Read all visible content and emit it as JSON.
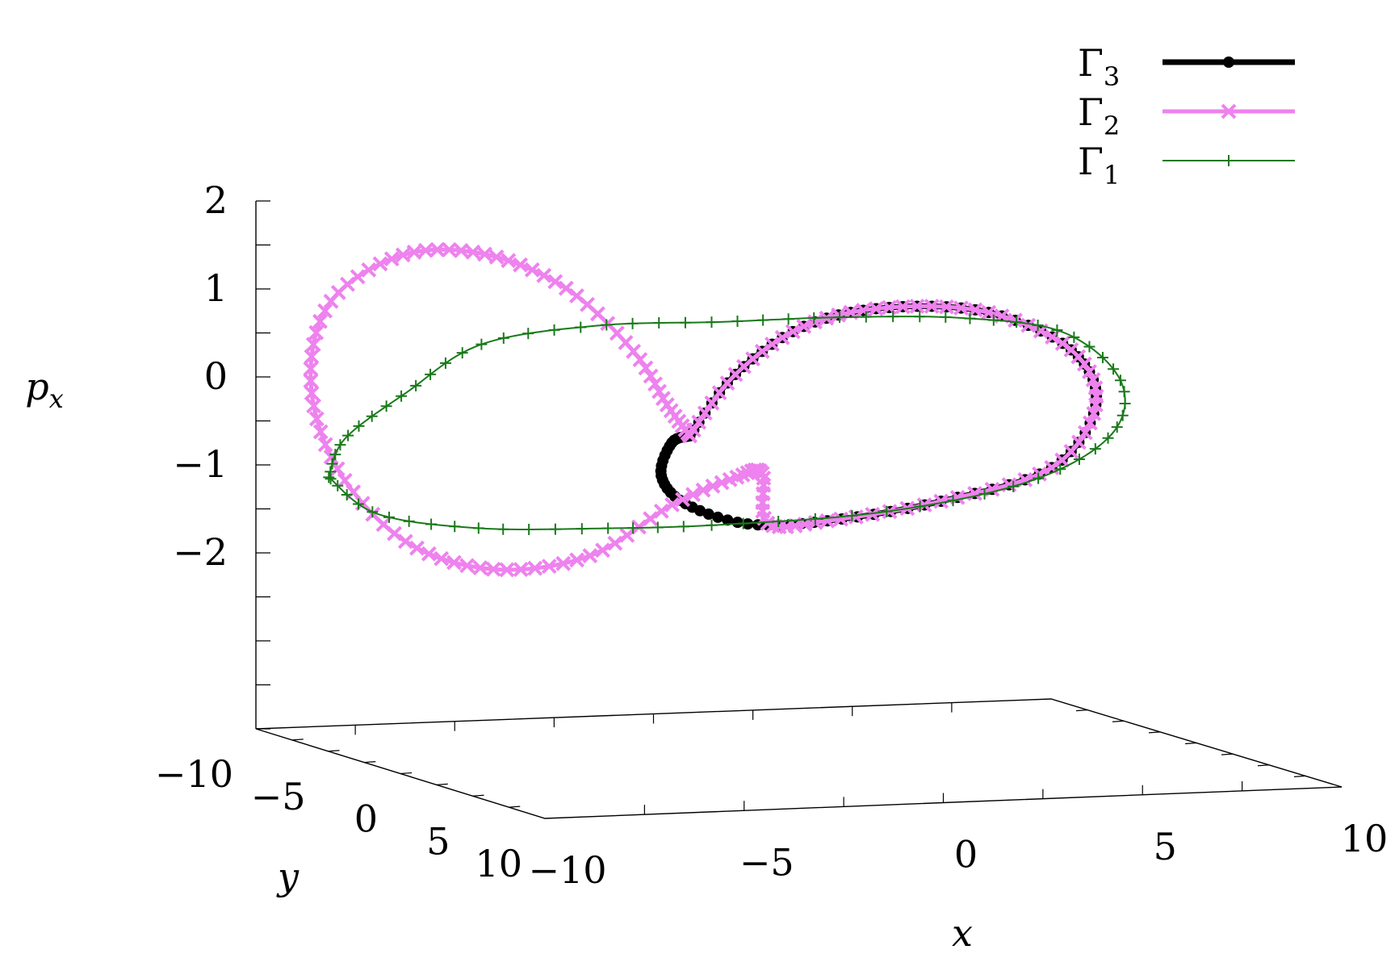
{
  "chart_data": {
    "type": "line3d",
    "title": "",
    "xlabel": "x",
    "ylabel": "y",
    "zlabel": "p_x",
    "xlim": [
      -10,
      10
    ],
    "ylim": [
      -10,
      10
    ],
    "zlim": [
      -4,
      2
    ],
    "xticks": [
      "−10",
      "−5",
      "0",
      "5",
      "10"
    ],
    "yticks": [
      "−10",
      "−5",
      "0",
      "5",
      "10"
    ],
    "zticks": [
      "−2",
      "−1",
      "0",
      "1",
      "2"
    ],
    "grid": false,
    "legend_position": "top-right",
    "legend": [
      {
        "label": "Γ3",
        "base": "Γ",
        "sub": "3",
        "color": "#000000",
        "marker": "star",
        "line_width": 7
      },
      {
        "label": "Γ2",
        "base": "Γ",
        "sub": "2",
        "color": "#ee82ee",
        "marker": "x",
        "line_width": 5
      },
      {
        "label": "Γ1",
        "base": "Γ",
        "sub": "1",
        "color": "#1a7a1a",
        "marker": "+",
        "line_width": 2
      }
    ],
    "series": [
      {
        "name": "Γ3",
        "color": "#000000",
        "marker": "star",
        "points": [
          [
            -2.0,
            -2.0,
            -0.4
          ],
          [
            -1.0,
            -1.6,
            0.3
          ],
          [
            0.5,
            -1.0,
            0.85
          ],
          [
            2.5,
            -0.6,
            1.05
          ],
          [
            5.0,
            -0.6,
            0.95
          ],
          [
            7.0,
            -0.4,
            0.5
          ],
          [
            7.4,
            0.2,
            -0.1
          ],
          [
            6.0,
            1.0,
            -0.75
          ],
          [
            3.0,
            1.6,
            -1.05
          ],
          [
            0.0,
            2.0,
            -1.2
          ],
          [
            -2.0,
            2.0,
            -1.2
          ],
          [
            -3.2,
            1.0,
            -1.0
          ],
          [
            -3.3,
            -0.4,
            -0.75
          ],
          [
            -2.6,
            -1.6,
            -0.45
          ],
          [
            -2.0,
            -2.0,
            -0.4
          ]
        ]
      },
      {
        "name": "Γ2",
        "color": "#ee82ee",
        "marker": "x",
        "points": [
          [
            -2.0,
            -2.0,
            -0.4
          ],
          [
            -1.0,
            -1.6,
            0.3
          ],
          [
            0.5,
            -1.0,
            0.85
          ],
          [
            2.5,
            -0.6,
            1.05
          ],
          [
            5.0,
            -0.6,
            0.95
          ],
          [
            7.0,
            -0.4,
            0.5
          ],
          [
            7.4,
            0.2,
            -0.1
          ],
          [
            6.0,
            1.0,
            -0.75
          ],
          [
            3.0,
            1.6,
            -1.05
          ],
          [
            0.0,
            2.0,
            -1.2
          ],
          [
            -1.5,
            2.0,
            -1.2
          ],
          [
            -1.2,
            0.8,
            -0.7
          ],
          [
            -1.4,
            -0.4,
            -0.8
          ],
          [
            -2.3,
            -2.4,
            -1.2
          ],
          [
            -4.0,
            -3.4,
            -1.8
          ],
          [
            -6.5,
            -3.2,
            -1.9
          ],
          [
            -9.0,
            -2.4,
            -1.5
          ],
          [
            -11.0,
            -1.6,
            -0.6
          ],
          [
            -11.6,
            -1.8,
            0.4
          ],
          [
            -10.8,
            -2.6,
            1.25
          ],
          [
            -8.7,
            -3.4,
            1.7
          ],
          [
            -6.5,
            -3.8,
            1.65
          ],
          [
            -4.6,
            -3.4,
            1.25
          ],
          [
            -3.2,
            -2.6,
            0.55
          ],
          [
            -2.5,
            -2.2,
            -0.05
          ],
          [
            -2.0,
            -2.0,
            -0.4
          ]
        ]
      },
      {
        "name": "Γ1",
        "color": "#1a7a1a",
        "marker": "+",
        "points": [
          [
            -11.8,
            0.0,
            -0.6
          ],
          [
            -11.5,
            0.3,
            -0.15
          ],
          [
            -10.0,
            0.4,
            0.35
          ],
          [
            -8.0,
            0.1,
            0.85
          ],
          [
            -5.0,
            -0.1,
            1.0
          ],
          [
            -2.0,
            0.1,
            1.0
          ],
          [
            1.0,
            0.1,
            1.0
          ],
          [
            4.0,
            0.3,
            0.95
          ],
          [
            6.5,
            0.4,
            0.75
          ],
          [
            7.8,
            0.8,
            0.2
          ],
          [
            7.5,
            1.0,
            -0.4
          ],
          [
            5.5,
            0.9,
            -0.9
          ],
          [
            2.0,
            0.6,
            -1.2
          ],
          [
            -2.0,
            0.2,
            -1.3
          ],
          [
            -5.0,
            0.0,
            -1.3
          ],
          [
            -8.0,
            -0.1,
            -1.25
          ],
          [
            -10.5,
            -0.2,
            -1.05
          ],
          [
            -11.8,
            0.0,
            -0.6
          ]
        ]
      }
    ]
  }
}
